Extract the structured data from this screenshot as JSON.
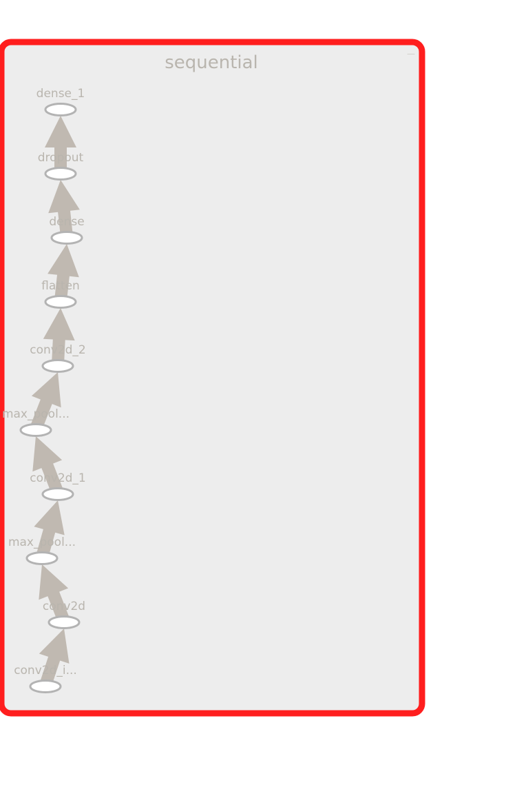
{
  "group": {
    "title": "sequential",
    "corner_glyph": "—"
  },
  "colors": {
    "group_border": "#ff1e1e",
    "group_fill": "#ededed",
    "node_stroke": "#b3b3b3",
    "edge": "#c0b9b1",
    "label": "#b9b5ae"
  },
  "nodes": [
    {
      "id": "dense_1",
      "label": "dense_1"
    },
    {
      "id": "dropout",
      "label": "dropout"
    },
    {
      "id": "dense",
      "label": "dense"
    },
    {
      "id": "flatten",
      "label": "flatten"
    },
    {
      "id": "conv2d_2",
      "label": "conv2d_2"
    },
    {
      "id": "max_pool_1",
      "label": "max_pool..."
    },
    {
      "id": "conv2d_1",
      "label": "conv2d_1"
    },
    {
      "id": "max_pool_0",
      "label": "max_pool..."
    },
    {
      "id": "conv2d",
      "label": "conv2d"
    },
    {
      "id": "conv2d_input",
      "label": "conv2d_i..."
    }
  ],
  "edges": [
    {
      "from": "conv2d_input",
      "to": "conv2d"
    },
    {
      "from": "conv2d",
      "to": "max_pool_0"
    },
    {
      "from": "max_pool_0",
      "to": "conv2d_1"
    },
    {
      "from": "conv2d_1",
      "to": "max_pool_1"
    },
    {
      "from": "max_pool_1",
      "to": "conv2d_2"
    },
    {
      "from": "conv2d_2",
      "to": "flatten"
    },
    {
      "from": "flatten",
      "to": "dense"
    },
    {
      "from": "dense",
      "to": "dropout"
    },
    {
      "from": "dropout",
      "to": "dense_1"
    }
  ]
}
